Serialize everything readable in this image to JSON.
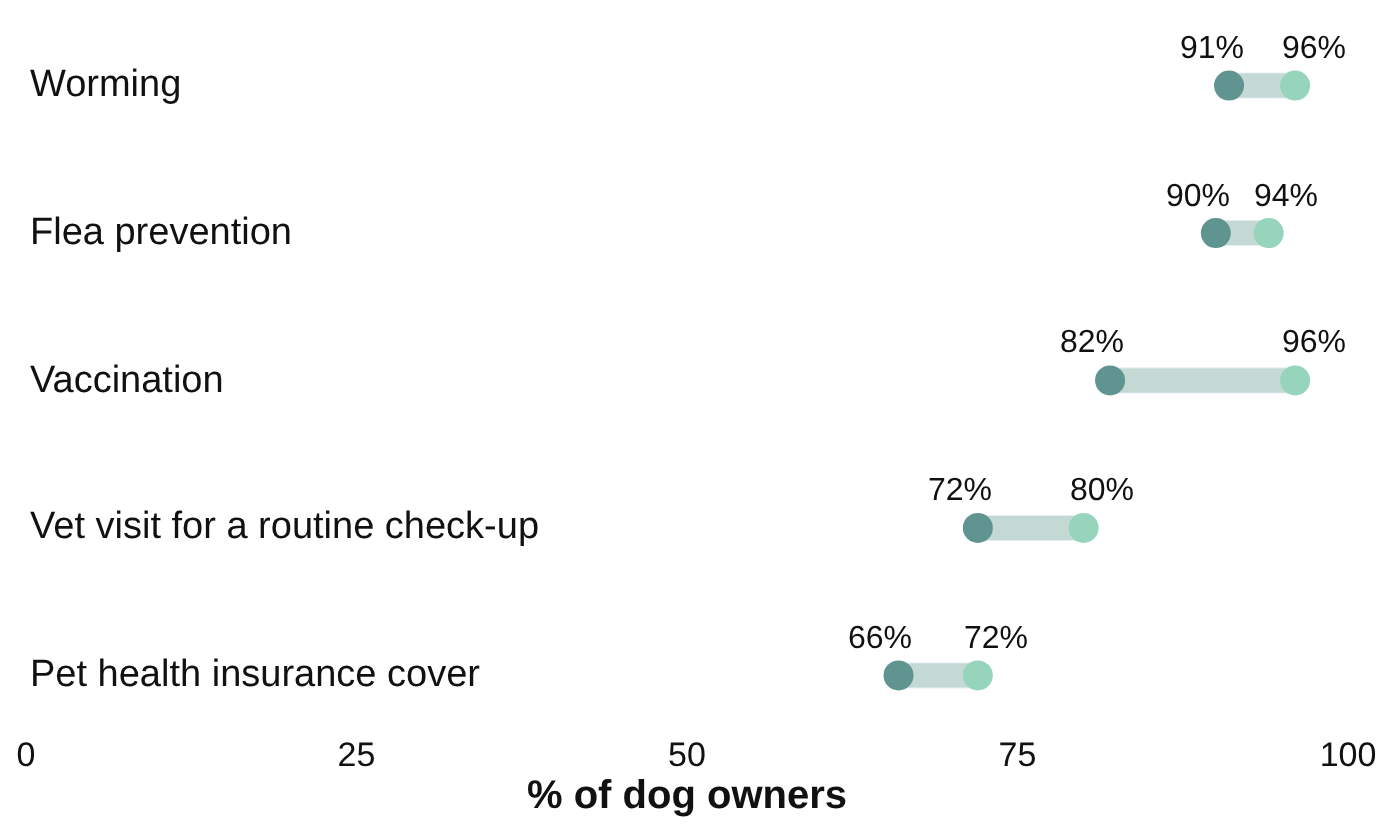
{
  "chart_data": {
    "type": "scatter",
    "orientation": "horizontal",
    "xlabel": "% of dog owners",
    "categories": [
      "Worming",
      "Flea prevention",
      "Vaccination",
      "Vet visit for a routine check-up",
      "Pet health insurance cover"
    ],
    "xlim": [
      0,
      100
    ],
    "xticks": [
      0,
      25,
      50,
      75,
      100
    ],
    "marker": "circle",
    "series": [
      {
        "type": "bar",
        "color": "#c4d8d4",
        "base": [
          91,
          90,
          82,
          72,
          66
        ],
        "values": [
          5,
          4,
          14,
          8,
          6
        ]
      },
      {
        "color": "#5f9490",
        "values": [
          91,
          90,
          82,
          72,
          66
        ],
        "value_labels": [
          "91%",
          "90%",
          "82%",
          "72%",
          "66%"
        ]
      },
      {
        "color": "#96d4bc",
        "values": [
          96,
          94,
          96,
          80,
          72
        ],
        "value_labels": [
          "96%",
          "94%",
          "96%",
          "80%",
          "72%"
        ]
      }
    ]
  }
}
